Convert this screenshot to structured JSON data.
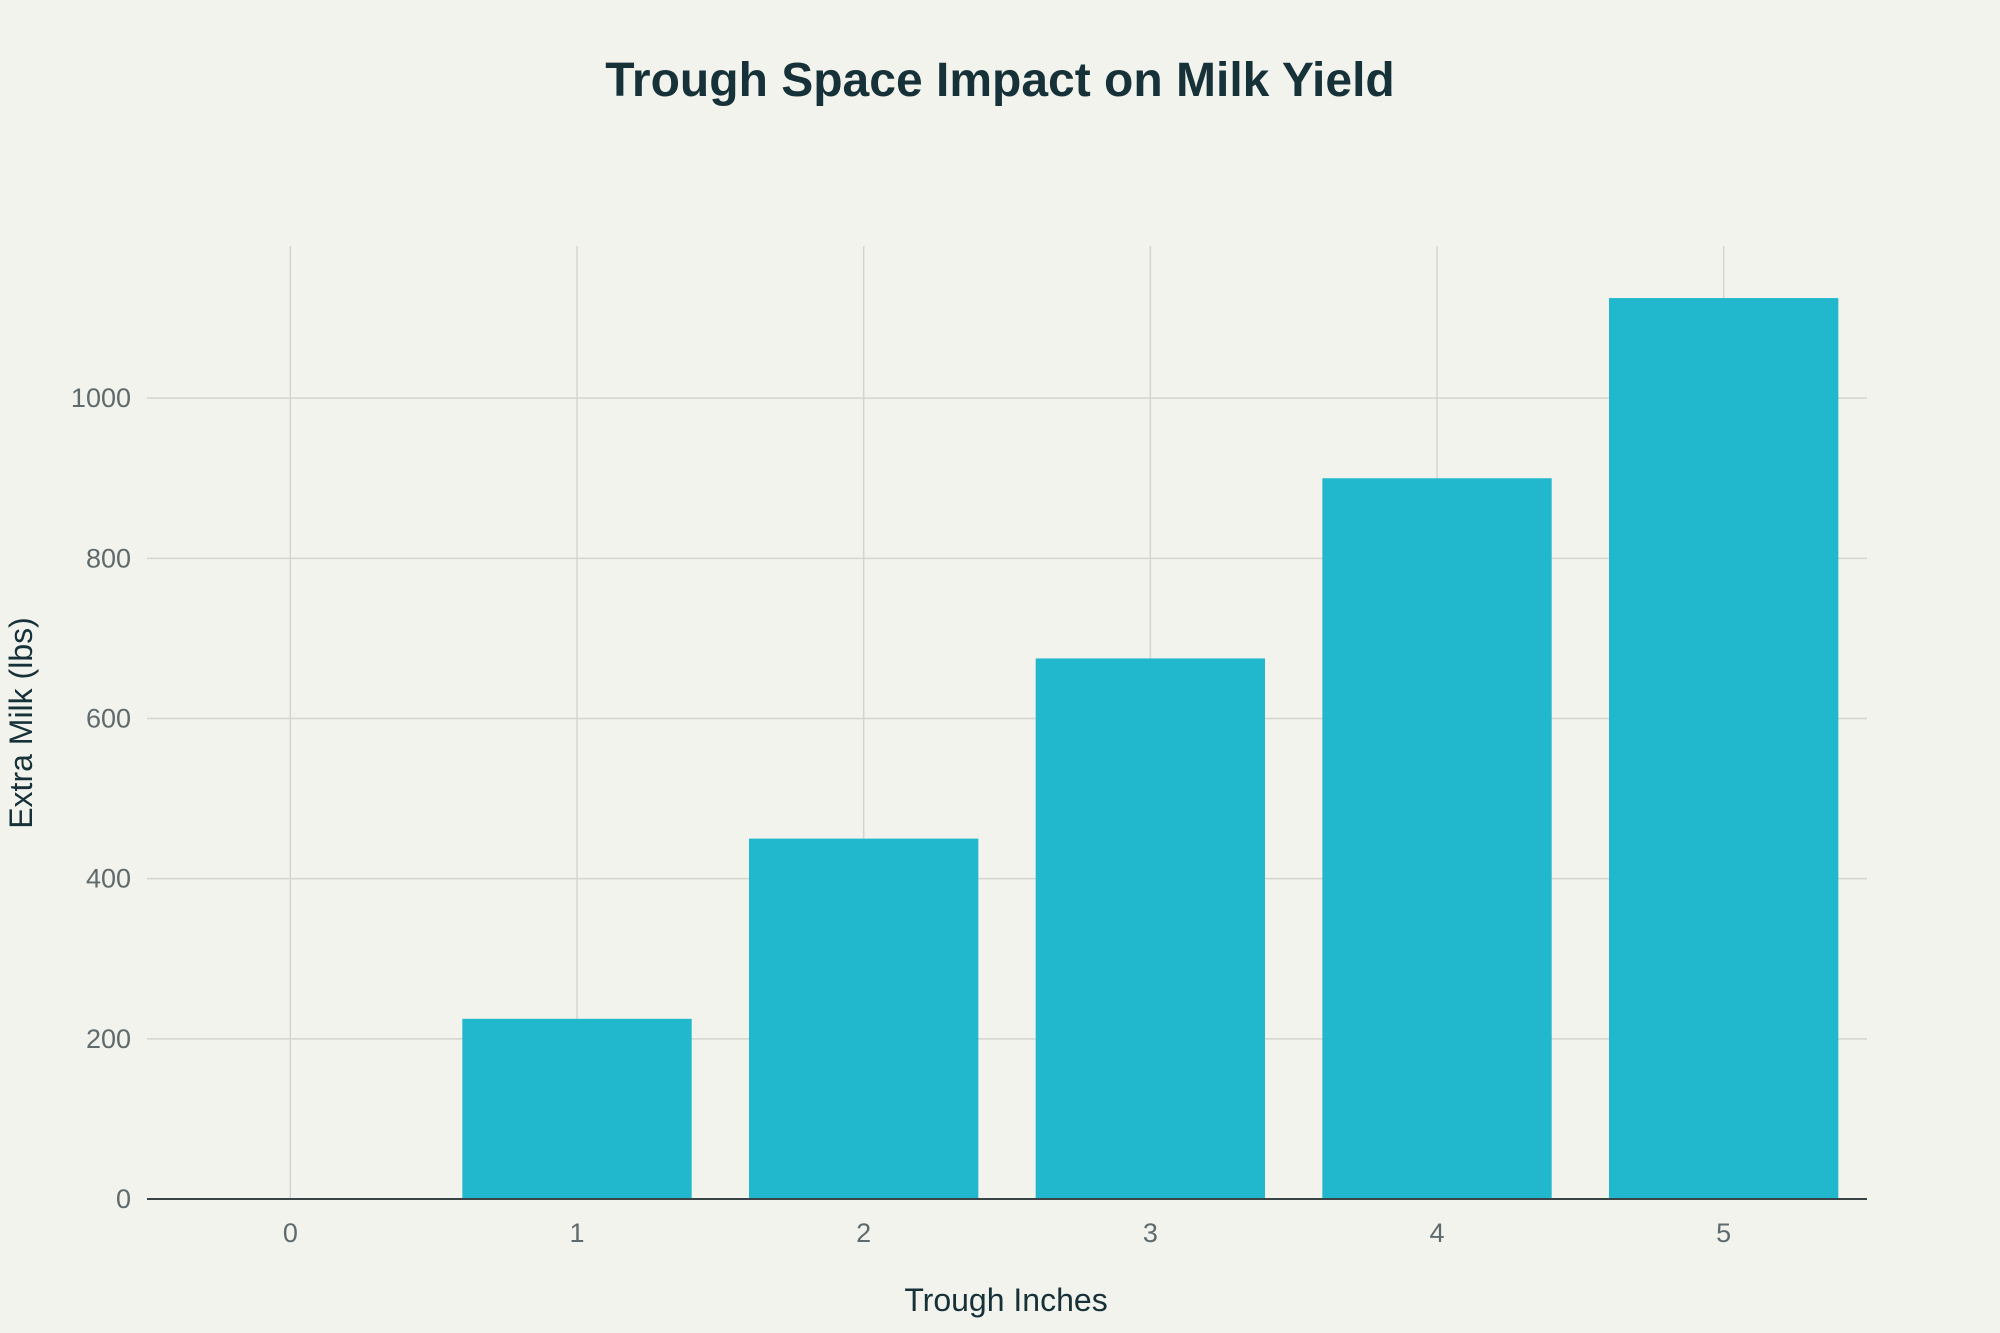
{
  "chart_data": {
    "type": "bar",
    "title": "Trough Space Impact on Milk Yield",
    "xlabel": "Trough Inches",
    "ylabel": "Extra Milk (lbs)",
    "categories": [
      "0",
      "1",
      "2",
      "3",
      "4",
      "5"
    ],
    "values": [
      0,
      225,
      450,
      675,
      900,
      1125
    ],
    "xlim": [
      -0.5,
      5.5
    ],
    "ylim": [
      0,
      1190
    ],
    "yticks": [
      0,
      200,
      400,
      600,
      800,
      1000
    ],
    "grid": true,
    "colors": {
      "bar": "#21b7cc",
      "background": "#f3f3ee",
      "grid": "#d4d4d0",
      "axis_line": "#3a4447",
      "title": "#163238",
      "ticks": "#5f6a6c"
    }
  }
}
